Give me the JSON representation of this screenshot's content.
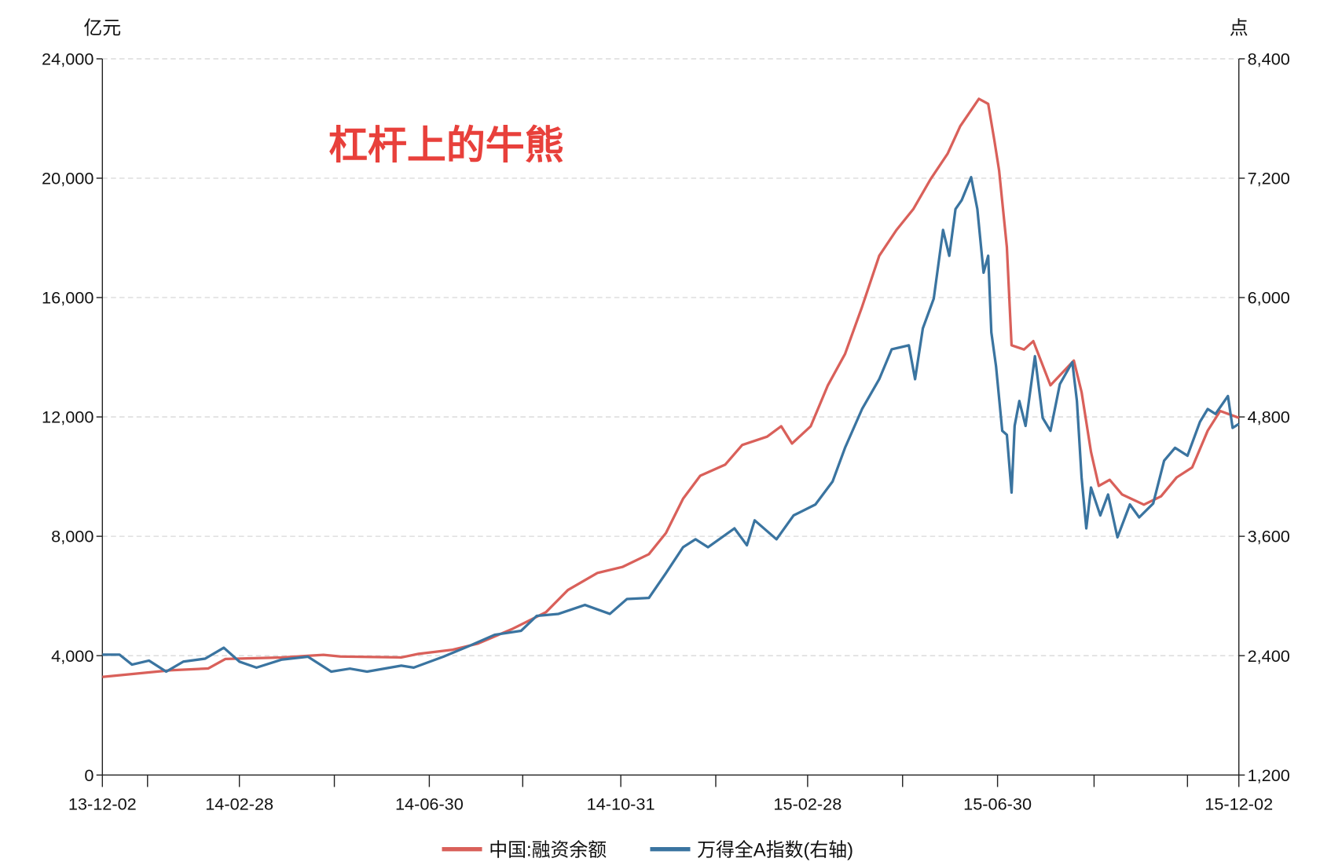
{
  "chart_data": {
    "type": "line",
    "title": "杠杆上的牛熊",
    "title_color": "#e8403b",
    "left_axis": {
      "unit": "亿元",
      "ylim": [
        0,
        24000
      ],
      "ticks": [
        0,
        4000,
        8000,
        12000,
        16000,
        20000,
        24000
      ],
      "tick_labels": [
        "0",
        "4,000",
        "8,000",
        "12,000",
        "16,000",
        "20,000",
        "24,000"
      ]
    },
    "right_axis": {
      "unit": "点",
      "ylim": [
        1200,
        8400
      ],
      "ticks": [
        1200,
        2400,
        3600,
        4800,
        6000,
        7200,
        8400
      ],
      "tick_labels": [
        "1,200",
        "2,400",
        "3,600",
        "4,800",
        "6,000",
        "7,200",
        "8,400"
      ]
    },
    "x_axis": {
      "range": [
        "2013-12-02",
        "2015-12-02"
      ],
      "major_ticks": [
        {
          "date": "2013-12-02",
          "label": "13-12-02"
        },
        {
          "date": "2014-02-28",
          "label": "14-02-28"
        },
        {
          "date": "2014-06-30",
          "label": "14-06-30"
        },
        {
          "date": "2014-10-31",
          "label": "14-10-31"
        },
        {
          "date": "2015-02-28",
          "label": "15-02-28"
        },
        {
          "date": "2015-06-30",
          "label": "15-06-30"
        },
        {
          "date": "2015-12-02",
          "label": "15-12-02"
        }
      ],
      "minor_ticks": [
        "2013-12-31",
        "2014-04-30",
        "2014-08-29",
        "2014-12-31",
        "2015-04-30",
        "2015-08-31",
        "2015-10-30"
      ]
    },
    "grid": "horizontal-dashed",
    "legend_position": "bottom",
    "series": [
      {
        "name": "中国:融资余额",
        "axis": "left",
        "color": "#d9605a",
        "points": [
          [
            "2013-12-02",
            3290
          ],
          [
            "2014-01-15",
            3510
          ],
          [
            "2014-02-08",
            3570
          ],
          [
            "2014-02-19",
            3890
          ],
          [
            "2014-03-27",
            3940
          ],
          [
            "2014-04-23",
            4030
          ],
          [
            "2014-05-04",
            3970
          ],
          [
            "2014-06-12",
            3940
          ],
          [
            "2014-06-23",
            4060
          ],
          [
            "2014-07-15",
            4200
          ],
          [
            "2014-07-31",
            4400
          ],
          [
            "2014-08-22",
            4890
          ],
          [
            "2014-09-13",
            5460
          ],
          [
            "2014-09-27",
            6200
          ],
          [
            "2014-10-16",
            6770
          ],
          [
            "2014-11-01",
            6970
          ],
          [
            "2014-11-18",
            7400
          ],
          [
            "2014-11-29",
            8110
          ],
          [
            "2014-12-10",
            9260
          ],
          [
            "2014-12-21",
            10030
          ],
          [
            "2015-01-06",
            10400
          ],
          [
            "2015-01-17",
            11060
          ],
          [
            "2015-02-02",
            11340
          ],
          [
            "2015-02-11",
            11690
          ],
          [
            "2015-02-18",
            11110
          ],
          [
            "2015-03-02",
            11690
          ],
          [
            "2015-03-13",
            13060
          ],
          [
            "2015-03-24",
            14110
          ],
          [
            "2015-04-04",
            15690
          ],
          [
            "2015-04-15",
            17400
          ],
          [
            "2015-04-26",
            18260
          ],
          [
            "2015-05-07",
            18970
          ],
          [
            "2015-05-18",
            19970
          ],
          [
            "2015-05-29",
            20830
          ],
          [
            "2015-06-06",
            21740
          ],
          [
            "2015-06-18",
            22660
          ],
          [
            "2015-06-24",
            22490
          ],
          [
            "2015-06-28",
            21260
          ],
          [
            "2015-07-01",
            20260
          ],
          [
            "2015-07-06",
            17690
          ],
          [
            "2015-07-09",
            14400
          ],
          [
            "2015-07-17",
            14260
          ],
          [
            "2015-07-23",
            14540
          ],
          [
            "2015-08-03",
            13060
          ],
          [
            "2015-08-18",
            13890
          ],
          [
            "2015-08-23",
            12830
          ],
          [
            "2015-08-29",
            10830
          ],
          [
            "2015-09-03",
            9690
          ],
          [
            "2015-09-10",
            9890
          ],
          [
            "2015-09-18",
            9400
          ],
          [
            "2015-10-02",
            9060
          ],
          [
            "2015-10-13",
            9340
          ],
          [
            "2015-10-23",
            9970
          ],
          [
            "2015-11-02",
            10310
          ],
          [
            "2015-11-12",
            11540
          ],
          [
            "2015-11-20",
            12200
          ],
          [
            "2015-12-02",
            11970
          ]
        ]
      },
      {
        "name": "万得全A指数(右轴)",
        "axis": "right",
        "color": "#3a74a0",
        "points": [
          [
            "2013-12-02",
            2410
          ],
          [
            "2013-12-13",
            2410
          ],
          [
            "2013-12-21",
            2310
          ],
          [
            "2014-01-01",
            2350
          ],
          [
            "2014-01-12",
            2240
          ],
          [
            "2014-01-23",
            2340
          ],
          [
            "2014-02-06",
            2370
          ],
          [
            "2014-02-18",
            2480
          ],
          [
            "2014-02-28",
            2340
          ],
          [
            "2014-03-11",
            2280
          ],
          [
            "2014-03-27",
            2360
          ],
          [
            "2014-04-13",
            2390
          ],
          [
            "2014-04-28",
            2240
          ],
          [
            "2014-05-10",
            2270
          ],
          [
            "2014-05-21",
            2240
          ],
          [
            "2014-06-12",
            2300
          ],
          [
            "2014-06-20",
            2280
          ],
          [
            "2014-07-09",
            2390
          ],
          [
            "2014-07-26",
            2500
          ],
          [
            "2014-08-11",
            2610
          ],
          [
            "2014-08-28",
            2650
          ],
          [
            "2014-09-07",
            2800
          ],
          [
            "2014-09-21",
            2820
          ],
          [
            "2014-10-08",
            2910
          ],
          [
            "2014-10-24",
            2820
          ],
          [
            "2014-11-04",
            2970
          ],
          [
            "2014-11-18",
            2980
          ],
          [
            "2014-11-29",
            3230
          ],
          [
            "2014-12-10",
            3490
          ],
          [
            "2014-12-18",
            3570
          ],
          [
            "2014-12-26",
            3490
          ],
          [
            "2015-01-12",
            3680
          ],
          [
            "2015-01-20",
            3510
          ],
          [
            "2015-01-25",
            3760
          ],
          [
            "2015-02-08",
            3570
          ],
          [
            "2015-02-19",
            3810
          ],
          [
            "2015-03-05",
            3920
          ],
          [
            "2015-03-16",
            4150
          ],
          [
            "2015-03-24",
            4490
          ],
          [
            "2015-04-04",
            4880
          ],
          [
            "2015-04-15",
            5180
          ],
          [
            "2015-04-23",
            5480
          ],
          [
            "2015-05-04",
            5520
          ],
          [
            "2015-05-08",
            5180
          ],
          [
            "2015-05-13",
            5690
          ],
          [
            "2015-05-20",
            5990
          ],
          [
            "2015-05-26",
            6680
          ],
          [
            "2015-05-30",
            6420
          ],
          [
            "2015-06-03",
            6890
          ],
          [
            "2015-06-07",
            6980
          ],
          [
            "2015-06-13",
            7210
          ],
          [
            "2015-06-17",
            6890
          ],
          [
            "2015-06-21",
            6250
          ],
          [
            "2015-06-24",
            6420
          ],
          [
            "2015-06-26",
            5650
          ],
          [
            "2015-06-29",
            5310
          ],
          [
            "2015-07-03",
            4660
          ],
          [
            "2015-07-06",
            4620
          ],
          [
            "2015-07-09",
            4040
          ],
          [
            "2015-07-11",
            4710
          ],
          [
            "2015-07-14",
            4960
          ],
          [
            "2015-07-18",
            4710
          ],
          [
            "2015-07-24",
            5410
          ],
          [
            "2015-07-29",
            4790
          ],
          [
            "2015-08-03",
            4660
          ],
          [
            "2015-08-09",
            5130
          ],
          [
            "2015-08-17",
            5350
          ],
          [
            "2015-08-20",
            4960
          ],
          [
            "2015-08-23",
            4190
          ],
          [
            "2015-08-26",
            3680
          ],
          [
            "2015-08-29",
            4090
          ],
          [
            "2015-09-04",
            3810
          ],
          [
            "2015-09-09",
            4020
          ],
          [
            "2015-09-15",
            3590
          ],
          [
            "2015-09-23",
            3920
          ],
          [
            "2015-09-29",
            3790
          ],
          [
            "2015-10-08",
            3930
          ],
          [
            "2015-10-15",
            4360
          ],
          [
            "2015-10-22",
            4490
          ],
          [
            "2015-10-30",
            4410
          ],
          [
            "2015-11-07",
            4750
          ],
          [
            "2015-11-12",
            4880
          ],
          [
            "2015-11-17",
            4830
          ],
          [
            "2015-11-25",
            5010
          ],
          [
            "2015-11-28",
            4690
          ],
          [
            "2015-12-02",
            4730
          ]
        ]
      }
    ]
  }
}
